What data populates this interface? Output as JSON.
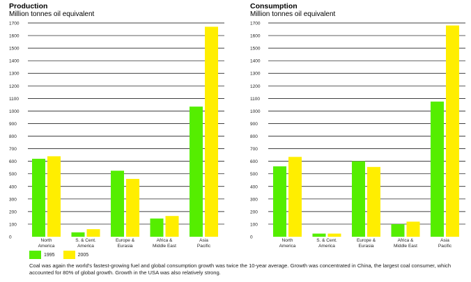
{
  "colors": {
    "series_1995": "#55ee00",
    "series_2005": "#ffee00",
    "axis": "#000000"
  },
  "legend": {
    "item_1995": "1995",
    "item_2005": "2005"
  },
  "caption": "Coal was again the world's fastest-growing fuel and global consumption growth was twice the 10-year average. Growth was concentrated in China, the largest coal consumer, which accounted for 80% of global growth. Growth in the USA was also relatively strong.",
  "chart_data": [
    {
      "type": "bar",
      "title": "Production",
      "ylabel": "Million tonnes oil equivalent",
      "categories": [
        [
          "North",
          "America"
        ],
        [
          "S. & Cent.",
          "America"
        ],
        [
          "Europe &",
          "Eurasia"
        ],
        [
          "Africa &",
          "Middle East"
        ],
        [
          "Asia",
          "Pacific"
        ]
      ],
      "series": [
        {
          "name": "1995",
          "values": [
            620,
            35,
            525,
            145,
            1035
          ]
        },
        {
          "name": "2005",
          "values": [
            640,
            60,
            460,
            165,
            1670
          ]
        }
      ],
      "ylim": [
        0,
        1700
      ],
      "yticks": [
        "0",
        "100",
        "200",
        "300",
        "400",
        "500",
        "600",
        "700",
        "800",
        "900",
        "1000",
        "1100",
        "1200",
        "1300",
        "1400",
        "1500",
        "1600",
        "1700"
      ],
      "grid": true,
      "legend": "bottom-left"
    },
    {
      "type": "bar",
      "title": "Consumption",
      "ylabel": "Million tonnes oil equivalent",
      "categories": [
        [
          "North",
          "America"
        ],
        [
          "S. & Cent.",
          "America"
        ],
        [
          "Europe &",
          "Eurasia"
        ],
        [
          "Africa &",
          "Middle East"
        ],
        [
          "Asia",
          "Pacific"
        ]
      ],
      "series": [
        {
          "name": "1995",
          "values": [
            560,
            25,
            600,
            100,
            1075
          ]
        },
        {
          "name": "2005",
          "values": [
            635,
            25,
            555,
            120,
            1680
          ]
        }
      ],
      "ylim": [
        0,
        1700
      ],
      "yticks": [
        "0",
        "100",
        "200",
        "300",
        "400",
        "500",
        "600",
        "700",
        "800",
        "900",
        "1000",
        "1100",
        "1200",
        "1300",
        "1400",
        "1500",
        "1600",
        "1700"
      ],
      "grid": true,
      "legend": "bottom-left"
    }
  ]
}
